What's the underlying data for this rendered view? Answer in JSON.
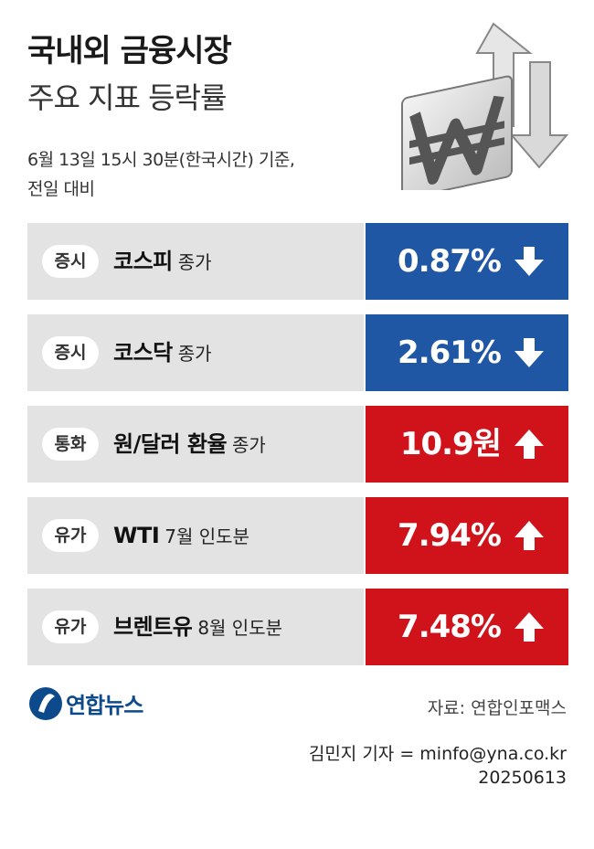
{
  "title": "국내외 금융시장",
  "subtitle": "주요 지표 등락률",
  "basis_line1": "6월 13일 15시 30분(한국시간) 기준,",
  "basis_line2": "전일 대비",
  "rows": [
    {
      "tag": "증시",
      "name": "코스피",
      "extra": "종가",
      "value": "0.87%",
      "direction": "down"
    },
    {
      "tag": "증시",
      "name": "코스닥",
      "extra": "종가",
      "value": "2.61%",
      "direction": "down"
    },
    {
      "tag": "통화",
      "name": "원/달러 환율",
      "extra": "종가",
      "value": "10.9원",
      "direction": "up"
    },
    {
      "tag": "유가",
      "name": "WTI",
      "extra": "7월 인도분",
      "value": "7.94%",
      "direction": "up"
    },
    {
      "tag": "유가",
      "name": "브렌트유",
      "extra": "8월 인도분",
      "value": "7.48%",
      "direction": "up"
    }
  ],
  "colors": {
    "down": "#1f57a4",
    "up": "#d0121b",
    "row_bg": "#e3e3e3"
  },
  "logo": {
    "text": "연합뉴스",
    "icon": "yonhap-logo-icon"
  },
  "source": "자료: 연합인포맥스",
  "credit_line1": "김민지 기자 = minfo@yna.co.kr",
  "credit_line2": "20250613"
}
